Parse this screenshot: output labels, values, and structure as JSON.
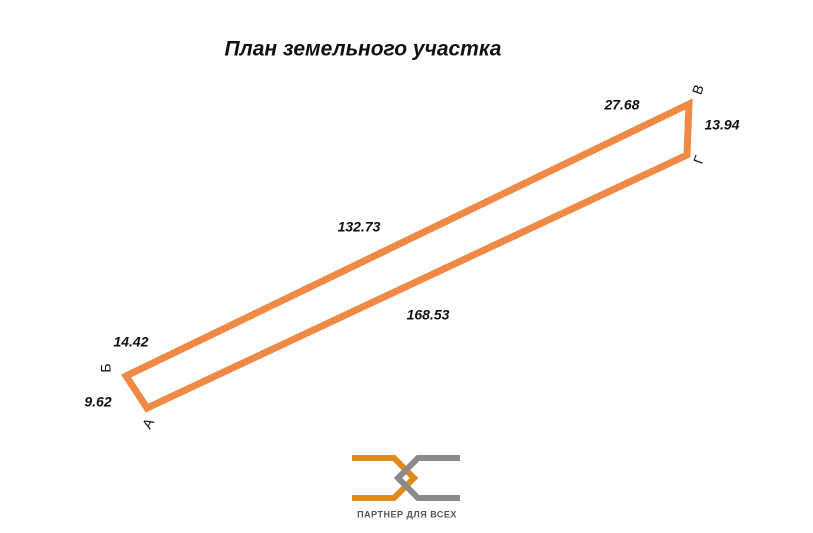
{
  "title": "План земельного участка",
  "vertices": [
    {
      "label": "А"
    },
    {
      "label": "Б"
    },
    {
      "label": "В"
    },
    {
      "label": "Г"
    }
  ],
  "sides": [
    {
      "length": "14.42"
    },
    {
      "length": "9.62"
    },
    {
      "length": "132.73"
    },
    {
      "length": "27.68"
    },
    {
      "length": "13.94"
    },
    {
      "length": "168.53"
    }
  ],
  "logo": {
    "text": "ПАРТНЕР ДЛЯ ВСЕХ"
  }
}
